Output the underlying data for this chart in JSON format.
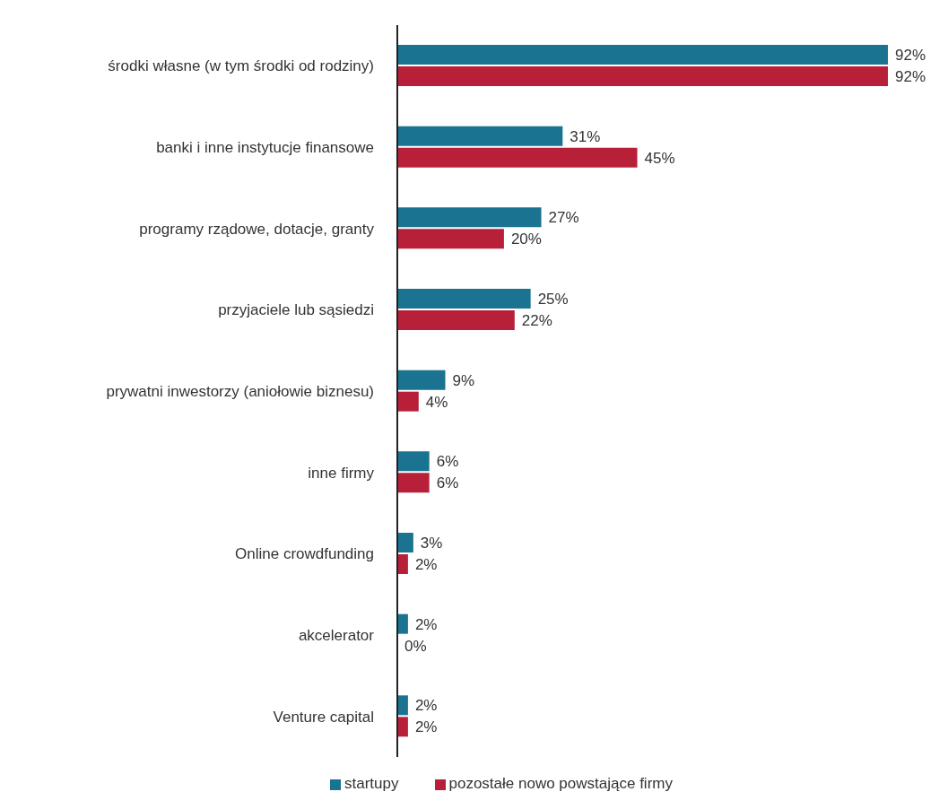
{
  "chart_data": {
    "type": "bar",
    "orientation": "horizontal",
    "categories": [
      "środki własne (w tym środki od rodziny)",
      "banki i inne instytucje finansowe",
      "programy rządowe, dotacje, granty",
      "przyjaciele lub sąsiedzi",
      "prywatni inwestorzy (aniołowie  biznesu)",
      "inne firmy",
      "Online crowdfunding",
      "akcelerator",
      "Venture capital"
    ],
    "series": [
      {
        "name": "startupy",
        "color": "#1a7391",
        "values": [
          92,
          31,
          27,
          25,
          9,
          6,
          3,
          2,
          2
        ],
        "value_labels": [
          "92%",
          "31%",
          "27%",
          "25%",
          "9%",
          "6%",
          "3%",
          "2%",
          "2%"
        ]
      },
      {
        "name": "pozostałe nowo powstające firmy",
        "color": "#b8203a",
        "values": [
          92,
          45,
          20,
          22,
          4,
          6,
          2,
          0,
          2
        ],
        "value_labels": [
          "92%",
          "45%",
          "20%",
          "22%",
          "4%",
          "6%",
          "2%",
          "0%",
          "2%"
        ]
      }
    ],
    "legend": "bottom",
    "grid": false
  }
}
